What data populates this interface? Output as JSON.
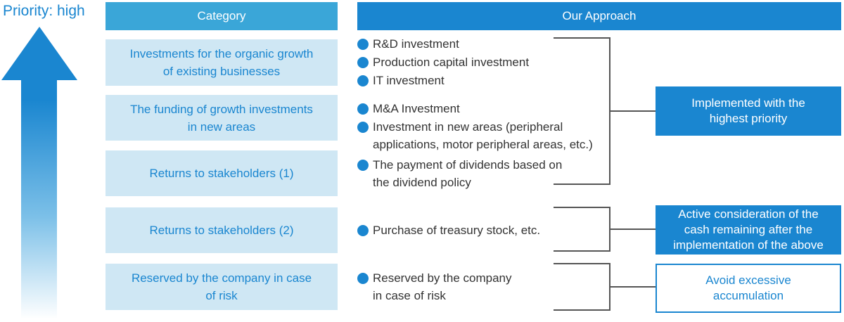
{
  "priority_label": "Priority: high",
  "headers": {
    "category": "Category",
    "approach": "Our Approach"
  },
  "categories": [
    {
      "line1": "Investments for the organic growth",
      "line2": "of existing businesses"
    },
    {
      "line1": "The funding of growth investments",
      "line2": "in new areas"
    },
    {
      "line1": "Returns to stakeholders (1)",
      "line2": ""
    },
    {
      "line1": "Returns to stakeholders (2)",
      "line2": ""
    },
    {
      "line1": "Reserved by the company in case",
      "line2": "of risk"
    }
  ],
  "approach_items": [
    {
      "line1": "R&D investment",
      "line2": ""
    },
    {
      "line1": "Production capital investment",
      "line2": ""
    },
    {
      "line1": "IT investment",
      "line2": ""
    },
    {
      "line1": "M&A Investment",
      "line2": ""
    },
    {
      "line1": "Investment in new areas (peripheral",
      "line2": "applications, motor peripheral areas, etc.)"
    },
    {
      "line1": "The payment of dividends based on",
      "line2": "the dividend policy"
    },
    {
      "line1": "Purchase of treasury stock, etc.",
      "line2": ""
    },
    {
      "line1": "Reserved by the company",
      "line2": "in case of risk"
    }
  ],
  "outcomes": [
    {
      "lines": [
        "Implemented with the",
        "highest priority"
      ],
      "style": "filled"
    },
    {
      "lines": [
        "Active consideration of the",
        "cash remaining after the",
        "implementation of the above"
      ],
      "style": "filled"
    },
    {
      "lines": [
        "Avoid excessive",
        "accumulation"
      ],
      "style": "outlined"
    }
  ],
  "colors": {
    "primary_blue": "#1a86d0",
    "light_header_blue": "#3aa6d8",
    "category_bg": "#cfe7f4",
    "bracket_gray": "#555555",
    "text_dark": "#333333"
  },
  "icons": {
    "priority_arrow": "up-arrow-gradient-icon",
    "bullet": "filled-circle-bullet-icon"
  }
}
